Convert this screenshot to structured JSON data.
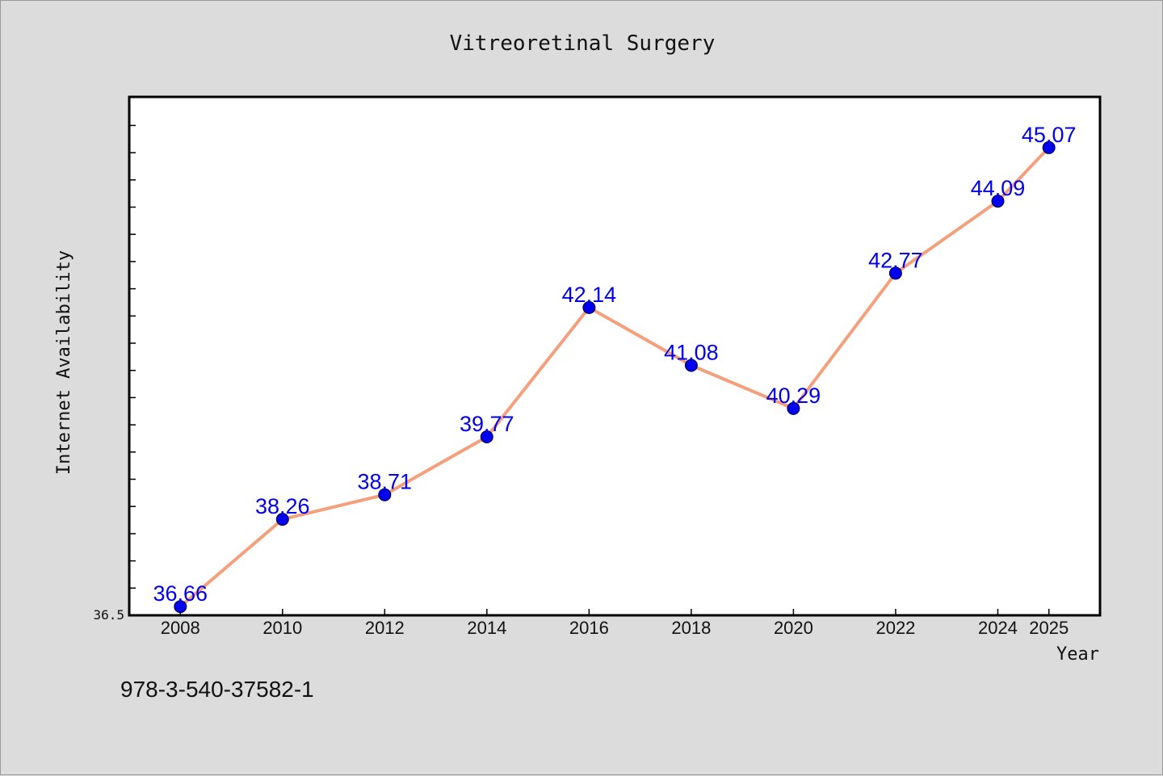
{
  "chart_data": {
    "type": "line",
    "title": "Vitreoretinal Surgery",
    "xlabel": "Year",
    "ylabel": "Internet Availability",
    "x": [
      2008,
      2010,
      2012,
      2014,
      2016,
      2018,
      2020,
      2022,
      2024,
      2025
    ],
    "x_tick_labels": [
      "2008",
      "2010",
      "2012",
      "2014",
      "2016",
      "2018",
      "2020",
      "2022",
      "2024",
      "2025"
    ],
    "y": [
      36.66,
      38.26,
      38.71,
      39.77,
      42.14,
      41.08,
      40.29,
      42.77,
      44.09,
      45.07
    ],
    "data_labels": [
      "36.66",
      "38.26",
      "38.71",
      "39.77",
      "42.14",
      "41.08",
      "40.29",
      "42.77",
      "44.09",
      "45.07"
    ],
    "ylim": [
      36.5,
      46.0
    ],
    "xlim": [
      2007,
      2026
    ],
    "y_min_label": "36.5",
    "grid": false,
    "line_color": "#f4a07c",
    "marker_color": "#0000ee",
    "label_color": "#0000ee"
  },
  "footer": {
    "isbn": "978-3-540-37582-1"
  }
}
